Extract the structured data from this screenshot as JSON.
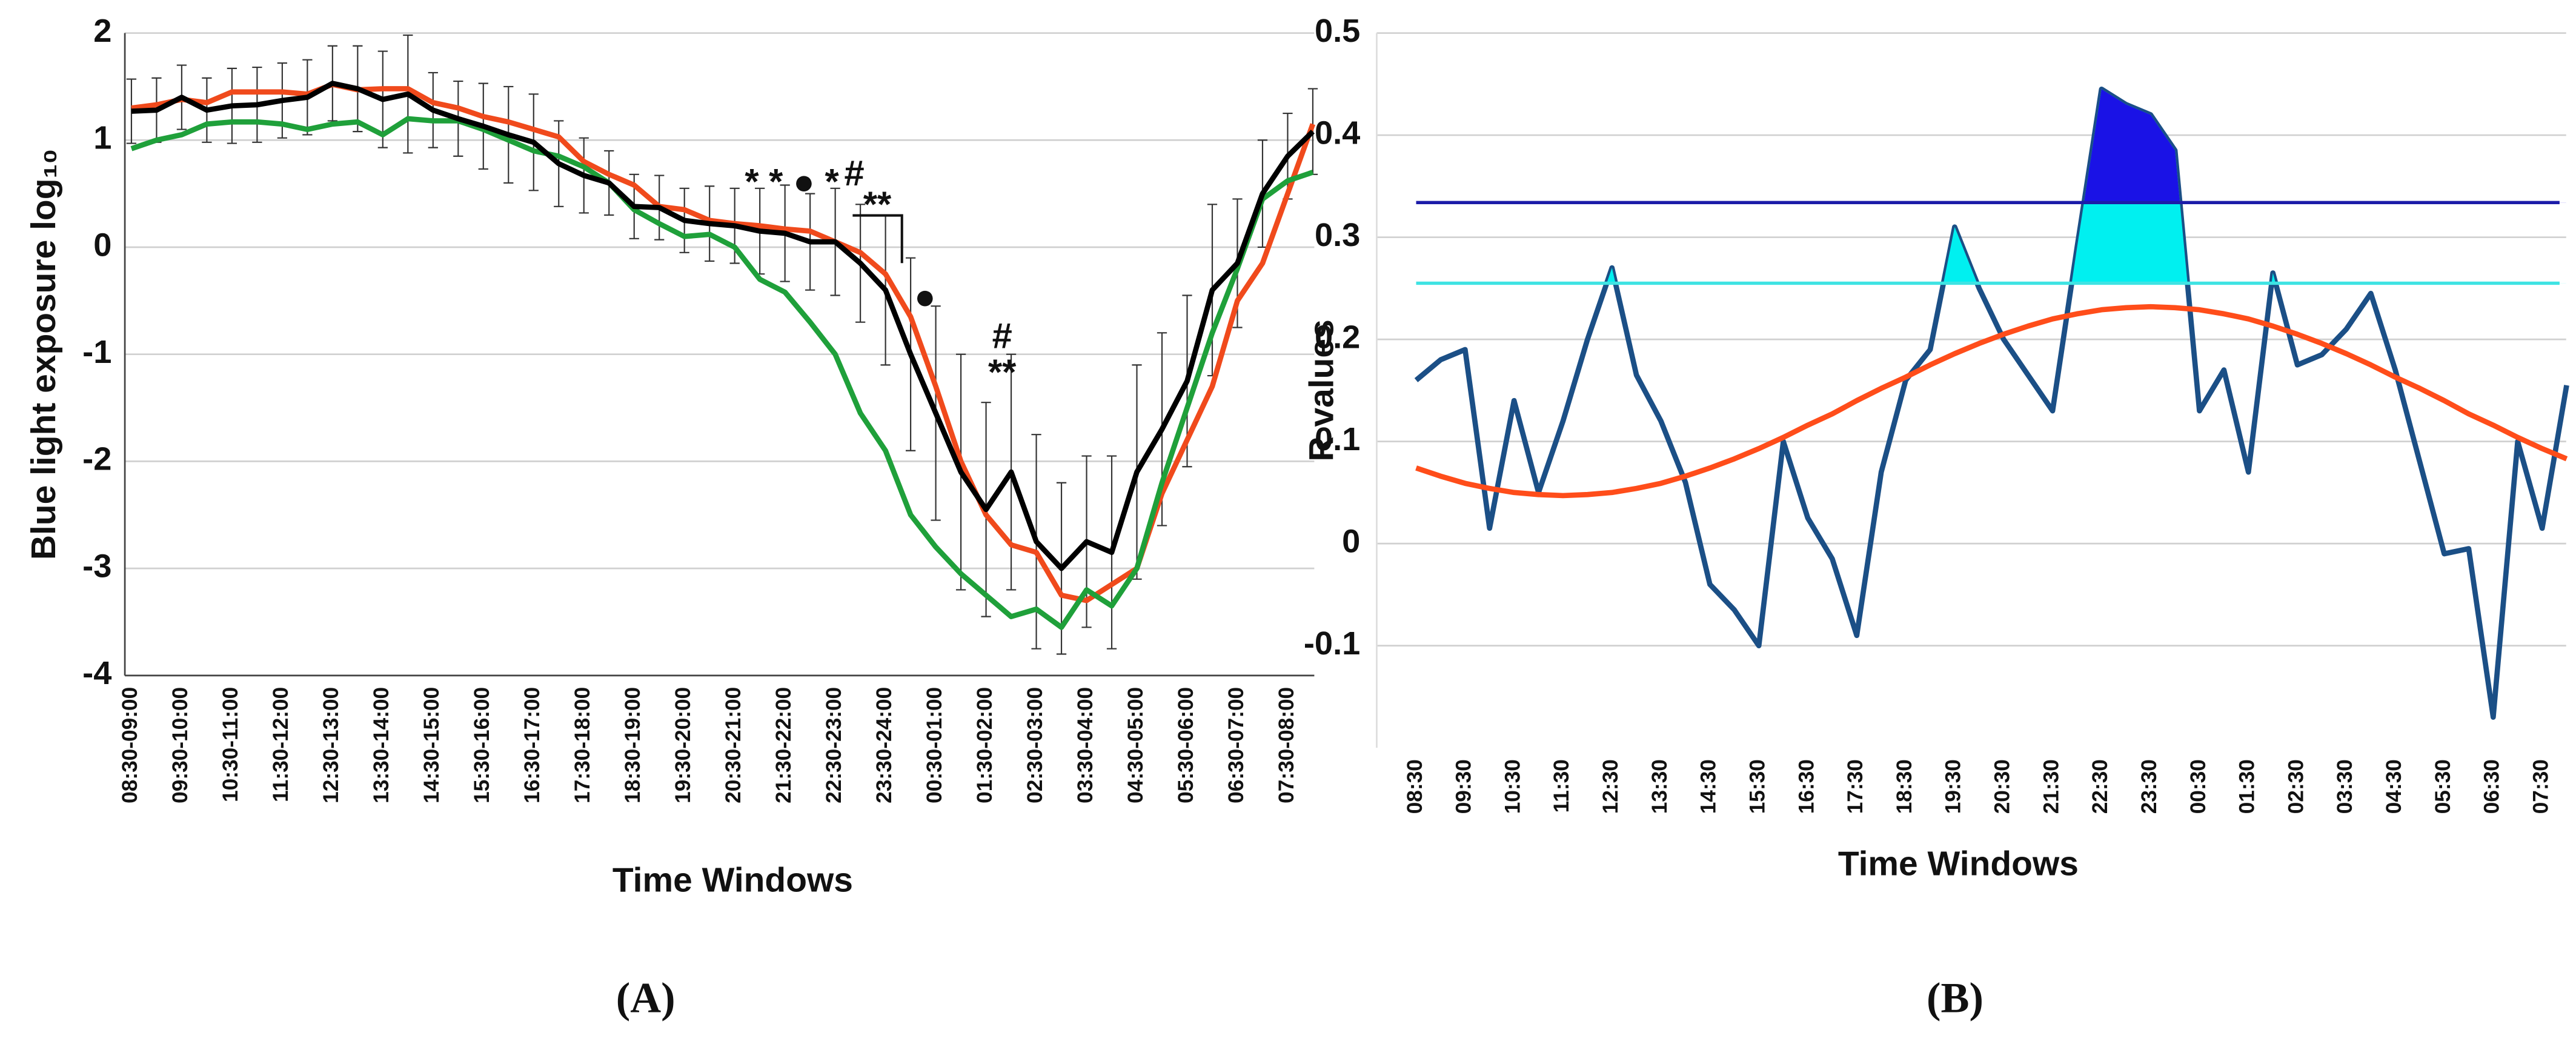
{
  "chart_data": [
    {
      "type": "line",
      "panel_label": "(A)",
      "x_label": "Time Windows",
      "y_label": "Blue light exposure log₁₀",
      "categories": [
        "08:30-09:00",
        null,
        "09:30-10:00",
        null,
        "10:30-11:00",
        null,
        "11:30-12:00",
        null,
        "12:30-13:00",
        null,
        "13:30-14:00",
        null,
        "14:30-15:00",
        null,
        "15:30-16:00",
        null,
        "16:30-17:00",
        null,
        "17:30-18:00",
        null,
        "18:30-19:00",
        null,
        "19:30-20:00",
        null,
        "20:30-21:00",
        null,
        "21:30-22:00",
        null,
        "22:30-23:00",
        null,
        "23:30-24:00",
        null,
        "00:30-01:00",
        null,
        "01:30-02:00",
        null,
        "02:30-03:00",
        null,
        "03:30-04:00",
        null,
        "04:30-05:00",
        null,
        "05:30-06:00",
        null,
        "06:30-07:00",
        null,
        "07:30-08:00",
        null
      ],
      "ylim": [
        -4,
        2
      ],
      "yticks": [
        -4,
        -3,
        -2,
        -1,
        0,
        1,
        2
      ],
      "grid": true,
      "series": [
        {
          "color": "#f04a1c",
          "values": [
            1.3,
            1.33,
            1.38,
            1.35,
            1.45,
            1.45,
            1.45,
            1.43,
            1.52,
            1.47,
            1.48,
            1.48,
            1.35,
            1.3,
            1.22,
            1.17,
            1.1,
            1.03,
            0.8,
            0.68,
            0.58,
            0.38,
            0.35,
            0.25,
            0.22,
            0.2,
            0.17,
            0.15,
            0.05,
            -0.05,
            -0.25,
            -0.65,
            -1.3,
            -2.0,
            -2.5,
            -2.78,
            -2.85,
            -3.25,
            -3.3,
            -3.15,
            -3.0,
            -2.3,
            -1.8,
            -1.3,
            -0.5,
            -0.15,
            0.5,
            1.15
          ]
        },
        {
          "color": "#1fa03a",
          "values": [
            0.92,
            1.0,
            1.05,
            1.15,
            1.17,
            1.17,
            1.15,
            1.1,
            1.15,
            1.17,
            1.05,
            1.2,
            1.18,
            1.18,
            1.1,
            1.0,
            0.9,
            0.85,
            0.75,
            0.6,
            0.35,
            0.22,
            0.1,
            0.12,
            0.0,
            -0.3,
            -0.42,
            -0.7,
            -1.0,
            -1.55,
            -1.9,
            -2.5,
            -2.8,
            -3.05,
            -3.25,
            -3.45,
            -3.38,
            -3.55,
            -3.2,
            -3.35,
            -3.0,
            -2.2,
            -1.5,
            -0.8,
            -0.2,
            0.45,
            0.62,
            0.7
          ]
        },
        {
          "color": "#000000",
          "values": [
            1.27,
            1.28,
            1.4,
            1.28,
            1.32,
            1.33,
            1.37,
            1.4,
            1.53,
            1.48,
            1.38,
            1.43,
            1.28,
            1.2,
            1.13,
            1.05,
            0.98,
            0.78,
            0.67,
            0.6,
            0.38,
            0.37,
            0.25,
            0.22,
            0.2,
            0.15,
            0.13,
            0.05,
            0.05,
            -0.15,
            -0.4,
            -1.0,
            -1.55,
            -2.1,
            -2.45,
            -2.1,
            -2.75,
            -3.0,
            -2.75,
            -2.85,
            -2.1,
            -1.7,
            -1.25,
            -0.4,
            -0.15,
            0.5,
            0.85,
            1.08
          ],
          "errors": [
            0.3,
            0.3,
            0.3,
            0.3,
            0.35,
            0.35,
            0.35,
            0.35,
            0.35,
            0.4,
            0.45,
            0.55,
            0.35,
            0.35,
            0.4,
            0.45,
            0.45,
            0.4,
            0.35,
            0.3,
            0.3,
            0.3,
            0.3,
            0.35,
            0.35,
            0.4,
            0.45,
            0.45,
            0.5,
            0.55,
            0.7,
            0.9,
            1.0,
            1.1,
            1.0,
            1.1,
            1.0,
            0.8,
            0.8,
            0.9,
            1.0,
            0.9,
            0.8,
            0.8,
            0.6,
            0.5,
            0.4,
            0.4
          ]
        }
      ],
      "annotations": [
        "* * ● *",
        "#",
        "**",
        "●",
        "#",
        "**"
      ]
    },
    {
      "type": "line",
      "panel_label": "(B)",
      "x_label": "Time Windows",
      "y_label": "R values",
      "categories": [
        "08:30",
        null,
        "09:30",
        null,
        "10:30",
        null,
        "11:30",
        null,
        "12:30",
        null,
        "13:30",
        null,
        "14:30",
        null,
        "15:30",
        null,
        "16:30",
        null,
        "17:30",
        null,
        "18:30",
        null,
        "19:30",
        null,
        "20:30",
        null,
        "21:30",
        null,
        "22:30",
        null,
        "23:30",
        null,
        "00:30",
        null,
        "01:30",
        null,
        "02:30",
        null,
        "03:30",
        null,
        "04:30",
        null,
        "05:30",
        null,
        "06:30",
        null,
        "07:30",
        null
      ],
      "ylim": [
        -0.2,
        0.5
      ],
      "yticks": [
        -0.1,
        0,
        0.1,
        0.2,
        0.3,
        0.4,
        0.5
      ],
      "grid": true,
      "series": [
        {
          "color": "#1b4f86",
          "values": [
            0.16,
            0.18,
            0.19,
            0.015,
            0.14,
            0.05,
            0.12,
            0.2,
            0.27,
            0.165,
            0.12,
            0.06,
            -0.04,
            -0.065,
            -0.1,
            0.1,
            0.025,
            -0.015,
            -0.09,
            0.07,
            0.16,
            0.19,
            0.31,
            0.25,
            0.2,
            0.165,
            0.13,
            0.29,
            0.445,
            0.43,
            0.42,
            0.385,
            0.13,
            0.17,
            0.07,
            0.265,
            0.175,
            0.185,
            0.21,
            0.245,
            0.17,
            0.08,
            -0.01,
            -0.005,
            -0.17,
            0.1,
            0.015,
            0.155
          ]
        },
        {
          "color": "#ff4d1a",
          "values": [
            0.074,
            0.066,
            0.059,
            0.054,
            0.05,
            0.048,
            0.047,
            0.048,
            0.05,
            0.054,
            0.059,
            0.066,
            0.074,
            0.083,
            0.093,
            0.104,
            0.116,
            0.127,
            0.14,
            0.152,
            0.163,
            0.175,
            0.186,
            0.196,
            0.205,
            0.213,
            0.22,
            0.225,
            0.229,
            0.231,
            0.232,
            0.231,
            0.229,
            0.225,
            0.22,
            0.213,
            0.205,
            0.196,
            0.186,
            0.175,
            0.163,
            0.152,
            0.14,
            0.127,
            0.116,
            0.104,
            0.093,
            0.083
          ]
        }
      ],
      "reference_lines": [
        {
          "value": 0.255,
          "color": "#3fe3e3",
          "fill": "#00f0f0"
        },
        {
          "value": 0.334,
          "color": "#1c1ca8",
          "fill": "#1a12e6"
        }
      ]
    }
  ]
}
